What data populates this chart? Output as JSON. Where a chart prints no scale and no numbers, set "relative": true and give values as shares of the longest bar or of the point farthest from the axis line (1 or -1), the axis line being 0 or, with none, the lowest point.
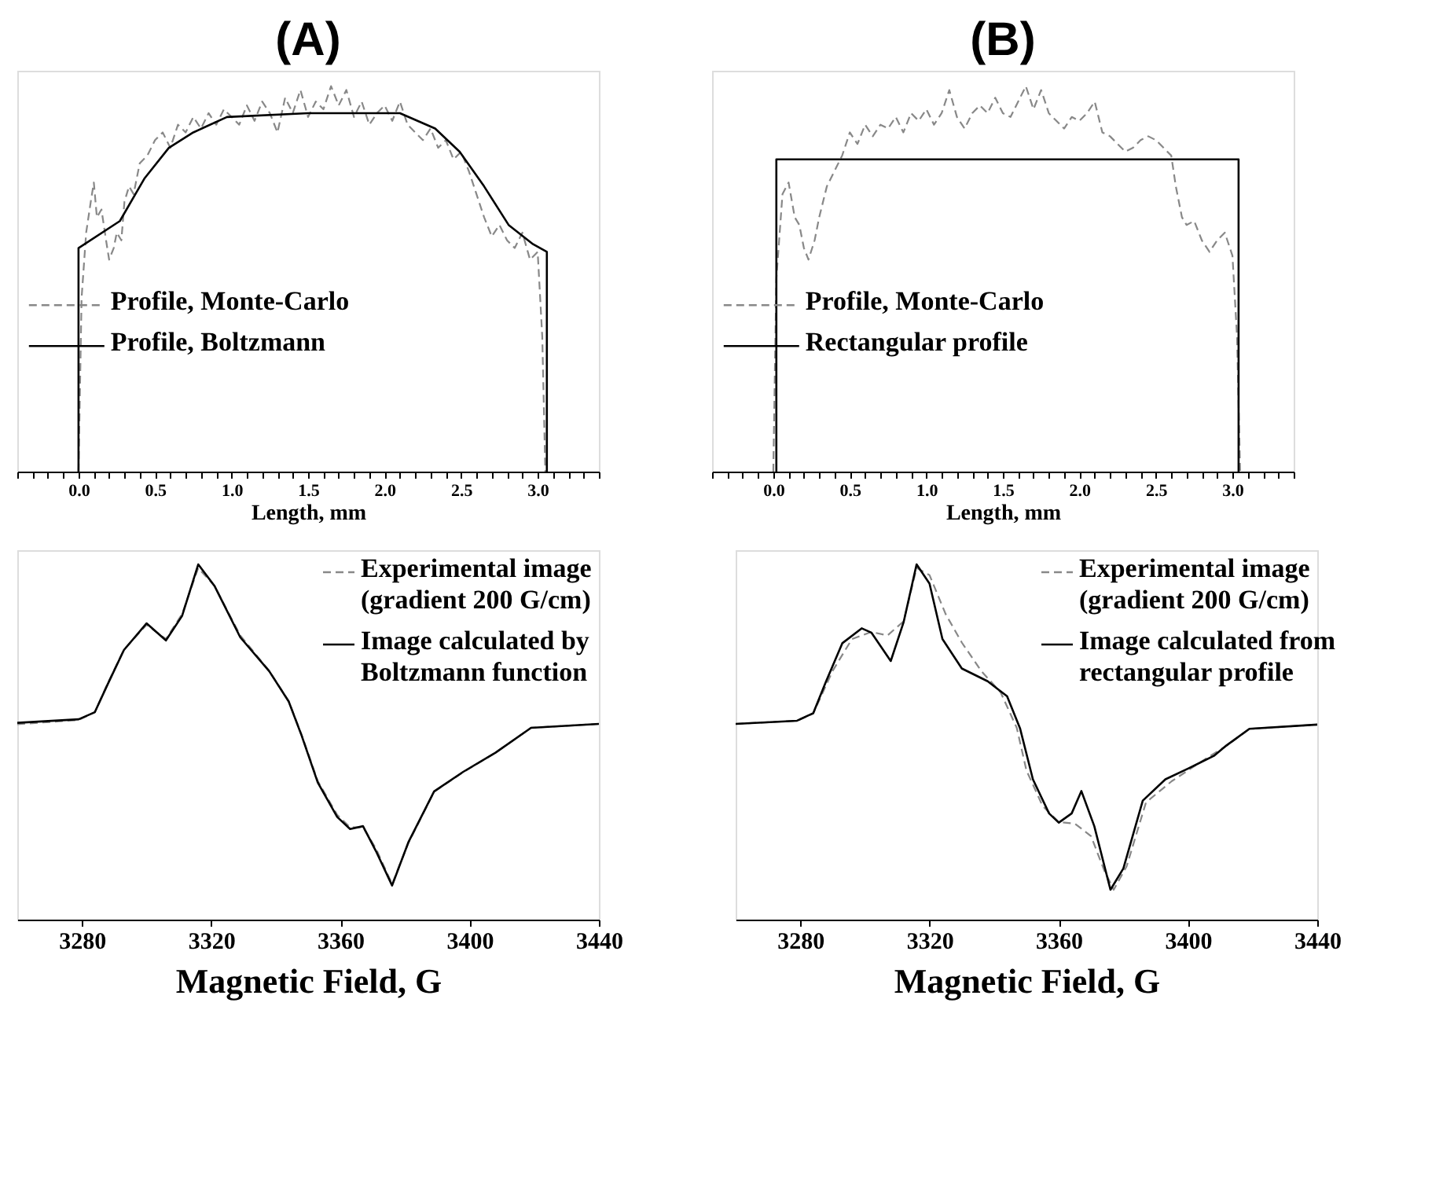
{
  "chart_data": [
    {
      "type": "line",
      "title": "(A)",
      "xlabel": "Length, mm",
      "relative": true,
      "legend": "left",
      "xlim": [
        -0.4,
        3.4
      ],
      "xticks": [
        {
          "value": -0.4,
          "label": null
        },
        {
          "value": -0.3,
          "label": null
        },
        {
          "value": -0.2,
          "label": null
        },
        {
          "value": -0.1,
          "label": null
        },
        {
          "value": 0,
          "label": "0.0"
        },
        {
          "value": 0.1,
          "label": null
        },
        {
          "value": 0.2,
          "label": null
        },
        {
          "value": 0.3,
          "label": null
        },
        {
          "value": 0.4,
          "label": null
        },
        0.5,
        {
          "value": 0.6,
          "label": null
        },
        {
          "value": 0.7,
          "label": null
        },
        {
          "value": 0.8,
          "label": null
        },
        {
          "value": 0.9,
          "label": null
        },
        {
          "value": 1,
          "label": "1.0"
        },
        {
          "value": 1.1,
          "label": null
        },
        {
          "value": 1.2,
          "label": null
        },
        {
          "value": 1.3,
          "label": null
        },
        {
          "value": 1.4,
          "label": null
        },
        1.5,
        {
          "value": 1.6,
          "label": null
        },
        {
          "value": 1.7,
          "label": null
        },
        {
          "value": 1.8,
          "label": null
        },
        {
          "value": 1.9,
          "label": null
        },
        {
          "value": 2,
          "label": "2.0"
        },
        {
          "value": 2.1,
          "label": null
        },
        {
          "value": 2.2,
          "label": null
        },
        {
          "value": 2.3,
          "label": null
        },
        {
          "value": 2.4,
          "label": null
        },
        2.5,
        {
          "value": 2.6,
          "label": null
        },
        {
          "value": 2.7,
          "label": null
        },
        {
          "value": 2.8,
          "label": null
        },
        {
          "value": 2.9,
          "label": null
        },
        {
          "value": 3,
          "label": "3.0"
        },
        {
          "value": 3.1,
          "label": null
        },
        {
          "value": 3.2,
          "label": null
        },
        {
          "value": 3.3,
          "label": null
        },
        {
          "value": 3.4,
          "label": null
        }
      ],
      "series": [
        {
          "name": "Profile, Monte-Carlo",
          "color": "#888888",
          "line_style": "dashed",
          "x": [
            0.0,
            0.02,
            0.05,
            0.08,
            0.1,
            0.12,
            0.15,
            0.18,
            0.2,
            0.23,
            0.25,
            0.28,
            0.3,
            0.33,
            0.36,
            0.4,
            0.45,
            0.5,
            0.55,
            0.6,
            0.65,
            0.7,
            0.75,
            0.8,
            0.85,
            0.9,
            0.95,
            1.0,
            1.05,
            1.1,
            1.15,
            1.2,
            1.25,
            1.3,
            1.35,
            1.4,
            1.45,
            1.5,
            1.55,
            1.6,
            1.65,
            1.7,
            1.75,
            1.8,
            1.85,
            1.9,
            1.95,
            2.0,
            2.05,
            2.1,
            2.15,
            2.2,
            2.25,
            2.3,
            2.35,
            2.4,
            2.45,
            2.5,
            2.55,
            2.6,
            2.65,
            2.7,
            2.75,
            2.8,
            2.85,
            2.9,
            2.95,
            3.0,
            3.03,
            3.05
          ],
          "values": [
            0,
            0.45,
            0.62,
            0.7,
            0.75,
            0.66,
            0.68,
            0.6,
            0.55,
            0.58,
            0.62,
            0.6,
            0.7,
            0.74,
            0.72,
            0.8,
            0.82,
            0.86,
            0.88,
            0.84,
            0.9,
            0.88,
            0.92,
            0.89,
            0.93,
            0.9,
            0.94,
            0.92,
            0.9,
            0.95,
            0.91,
            0.96,
            0.93,
            0.88,
            0.97,
            0.93,
            0.99,
            0.92,
            0.96,
            0.94,
            1.0,
            0.95,
            0.99,
            0.92,
            0.96,
            0.9,
            0.93,
            0.95,
            0.91,
            0.96,
            0.9,
            0.88,
            0.86,
            0.89,
            0.84,
            0.86,
            0.81,
            0.83,
            0.78,
            0.72,
            0.66,
            0.61,
            0.64,
            0.6,
            0.58,
            0.62,
            0.55,
            0.57,
            0.35,
            0
          ]
        },
        {
          "name": "Profile, Boltzmann",
          "color": "#000000",
          "line_style": "solid",
          "x": [
            0.0,
            0.0,
            0.27,
            0.43,
            0.59,
            0.75,
            0.97,
            1.5,
            2.1,
            2.33,
            2.49,
            2.65,
            2.81,
            2.97,
            3.06,
            3.06
          ],
          "values": [
            0,
            0.58,
            0.65,
            0.76,
            0.84,
            0.88,
            0.92,
            0.93,
            0.93,
            0.89,
            0.83,
            0.74,
            0.64,
            0.59,
            0.57,
            0
          ]
        }
      ]
    },
    {
      "type": "line",
      "title": "(B)",
      "xlabel": "Length, mm",
      "relative": true,
      "legend": "left",
      "xlim": [
        -0.4,
        3.4
      ],
      "xticks": [
        {
          "value": -0.4,
          "label": null
        },
        {
          "value": -0.3,
          "label": null
        },
        {
          "value": -0.2,
          "label": null
        },
        {
          "value": -0.1,
          "label": null
        },
        {
          "value": 0,
          "label": "0.0"
        },
        {
          "value": 0.1,
          "label": null
        },
        {
          "value": 0.2,
          "label": null
        },
        {
          "value": 0.3,
          "label": null
        },
        {
          "value": 0.4,
          "label": null
        },
        0.5,
        {
          "value": 0.6,
          "label": null
        },
        {
          "value": 0.7,
          "label": null
        },
        {
          "value": 0.8,
          "label": null
        },
        {
          "value": 0.9,
          "label": null
        },
        {
          "value": 1,
          "label": "1.0"
        },
        {
          "value": 1.1,
          "label": null
        },
        {
          "value": 1.2,
          "label": null
        },
        {
          "value": 1.3,
          "label": null
        },
        {
          "value": 1.4,
          "label": null
        },
        1.5,
        {
          "value": 1.6,
          "label": null
        },
        {
          "value": 1.7,
          "label": null
        },
        {
          "value": 1.8,
          "label": null
        },
        {
          "value": 1.9,
          "label": null
        },
        {
          "value": 2,
          "label": "2.0"
        },
        {
          "value": 2.1,
          "label": null
        },
        {
          "value": 2.2,
          "label": null
        },
        {
          "value": 2.3,
          "label": null
        },
        {
          "value": 2.4,
          "label": null
        },
        2.5,
        {
          "value": 2.6,
          "label": null
        },
        {
          "value": 2.7,
          "label": null
        },
        {
          "value": 2.8,
          "label": null
        },
        {
          "value": 2.9,
          "label": null
        },
        {
          "value": 3,
          "label": "3.0"
        },
        {
          "value": 3.1,
          "label": null
        },
        {
          "value": 3.2,
          "label": null
        },
        {
          "value": 3.3,
          "label": null
        },
        {
          "value": 3.4,
          "label": null
        }
      ],
      "series": [
        {
          "name": "Profile, Monte-Carlo",
          "color": "#888888",
          "line_style": "dashed",
          "x": [
            0.0,
            0.02,
            0.06,
            0.1,
            0.14,
            0.17,
            0.2,
            0.23,
            0.27,
            0.3,
            0.35,
            0.4,
            0.45,
            0.5,
            0.55,
            0.6,
            0.65,
            0.7,
            0.75,
            0.8,
            0.85,
            0.9,
            0.95,
            1.0,
            1.05,
            1.1,
            1.15,
            1.2,
            1.25,
            1.3,
            1.35,
            1.4,
            1.45,
            1.5,
            1.55,
            1.6,
            1.65,
            1.7,
            1.75,
            1.8,
            1.85,
            1.9,
            1.95,
            2.0,
            2.05,
            2.1,
            2.15,
            2.2,
            2.25,
            2.3,
            2.35,
            2.4,
            2.45,
            2.5,
            2.55,
            2.6,
            2.63,
            2.67,
            2.7,
            2.75,
            2.8,
            2.85,
            2.9,
            2.95,
            3.0,
            3.03,
            3.05
          ],
          "values": [
            0,
            0.5,
            0.72,
            0.75,
            0.66,
            0.64,
            0.58,
            0.55,
            0.6,
            0.66,
            0.74,
            0.78,
            0.82,
            0.88,
            0.85,
            0.9,
            0.87,
            0.9,
            0.89,
            0.92,
            0.88,
            0.93,
            0.91,
            0.94,
            0.9,
            0.93,
            0.99,
            0.92,
            0.89,
            0.93,
            0.95,
            0.93,
            0.97,
            0.93,
            0.92,
            0.96,
            1.0,
            0.94,
            0.99,
            0.93,
            0.91,
            0.89,
            0.92,
            0.91,
            0.93,
            0.96,
            0.88,
            0.87,
            0.85,
            0.83,
            0.84,
            0.86,
            0.87,
            0.86,
            0.84,
            0.82,
            0.74,
            0.66,
            0.64,
            0.65,
            0.6,
            0.57,
            0.6,
            0.62,
            0.56,
            0.35,
            0
          ]
        },
        {
          "name": "Rectangular profile",
          "color": "#000000",
          "line_style": "solid",
          "x": [
            0.02,
            0.02,
            3.04,
            3.04
          ],
          "values": [
            0,
            0.81,
            0.81,
            0
          ]
        }
      ]
    },
    {
      "type": "line",
      "xlabel": "Magnetic Field, G",
      "relative": true,
      "legend": "top right",
      "xlim": [
        3260,
        3440
      ],
      "xticks": [
        3280,
        3320,
        3360,
        3400,
        3440
      ],
      "series": [
        {
          "name": "Experimental image (gradient 200 G/cm)",
          "color": "#888888",
          "line_style": "dashed",
          "x": [
            3260,
            3279,
            3284,
            3288,
            3293,
            3300,
            3306,
            3311,
            3316,
            3321,
            3329,
            3338,
            3344,
            3348,
            3353,
            3359,
            3363,
            3367,
            3371,
            3376,
            3381,
            3389,
            3398,
            3408,
            3419,
            3440
          ],
          "values": [
            0.55,
            0.562,
            0.584,
            0.665,
            0.76,
            0.83,
            0.79,
            0.86,
            0.99,
            0.94,
            0.8,
            0.7,
            0.615,
            0.52,
            0.39,
            0.295,
            0.26,
            0.26,
            0.2,
            0.1,
            0.215,
            0.36,
            0.415,
            0.47,
            0.54,
            0.551
          ]
        },
        {
          "name": "Image calculated by Boltzmann function",
          "color": "#000000",
          "line_style": "solid",
          "x": [
            3260,
            3279,
            3284,
            3288,
            3293,
            3300,
            3306,
            3311,
            3316,
            3321,
            3329,
            3338,
            3344,
            3348,
            3353,
            3359,
            3363,
            3367,
            3371,
            3376,
            3381,
            3389,
            3398,
            3408,
            3419,
            3440
          ],
          "values": [
            0.554,
            0.564,
            0.584,
            0.663,
            0.759,
            0.834,
            0.786,
            0.855,
            1.0,
            0.94,
            0.795,
            0.699,
            0.614,
            0.518,
            0.386,
            0.289,
            0.255,
            0.263,
            0.193,
            0.096,
            0.217,
            0.361,
            0.416,
            0.47,
            0.54,
            0.551
          ]
        }
      ]
    },
    {
      "type": "line",
      "xlabel": "Magnetic Field, G",
      "relative": true,
      "legend": "top right",
      "xlim": [
        3260,
        3440
      ],
      "xticks": [
        3280,
        3320,
        3360,
        3400,
        3440
      ],
      "series": [
        {
          "name": "Experimental image (gradient 200 G/cm)",
          "color": "#888888",
          "line_style": "dashed",
          "x": [
            3260,
            3279,
            3284,
            3290,
            3296,
            3302,
            3307,
            3312,
            3316,
            3320,
            3325,
            3330,
            3336,
            3342,
            3347,
            3350,
            3355,
            3360,
            3365,
            3370,
            3374,
            3377,
            3381,
            3387,
            3395,
            3405,
            3412,
            3419,
            3440
          ],
          "values": [
            0.551,
            0.56,
            0.58,
            0.7,
            0.79,
            0.81,
            0.8,
            0.84,
            0.99,
            0.97,
            0.86,
            0.78,
            0.7,
            0.64,
            0.54,
            0.42,
            0.32,
            0.275,
            0.27,
            0.235,
            0.14,
            0.084,
            0.15,
            0.33,
            0.39,
            0.45,
            0.49,
            0.537,
            0.549
          ]
        },
        {
          "name": "Image calculated from rectangular profile",
          "color": "#000000",
          "line_style": "solid",
          "x": [
            3260,
            3279,
            3284,
            3288,
            3293,
            3299,
            3302,
            3308,
            3312,
            3316,
            3320,
            3324,
            3330,
            3338,
            3344,
            3348,
            3352,
            3357,
            3360,
            3364,
            3367,
            3371,
            3376,
            3380,
            3386,
            3393,
            3400,
            3408,
            3412,
            3419,
            3440
          ],
          "values": [
            0.551,
            0.56,
            0.581,
            0.671,
            0.778,
            0.82,
            0.808,
            0.728,
            0.838,
            1.0,
            0.946,
            0.79,
            0.707,
            0.671,
            0.629,
            0.539,
            0.395,
            0.299,
            0.273,
            0.299,
            0.362,
            0.263,
            0.084,
            0.144,
            0.335,
            0.395,
            0.425,
            0.461,
            0.491,
            0.537,
            0.549
          ]
        }
      ]
    }
  ]
}
